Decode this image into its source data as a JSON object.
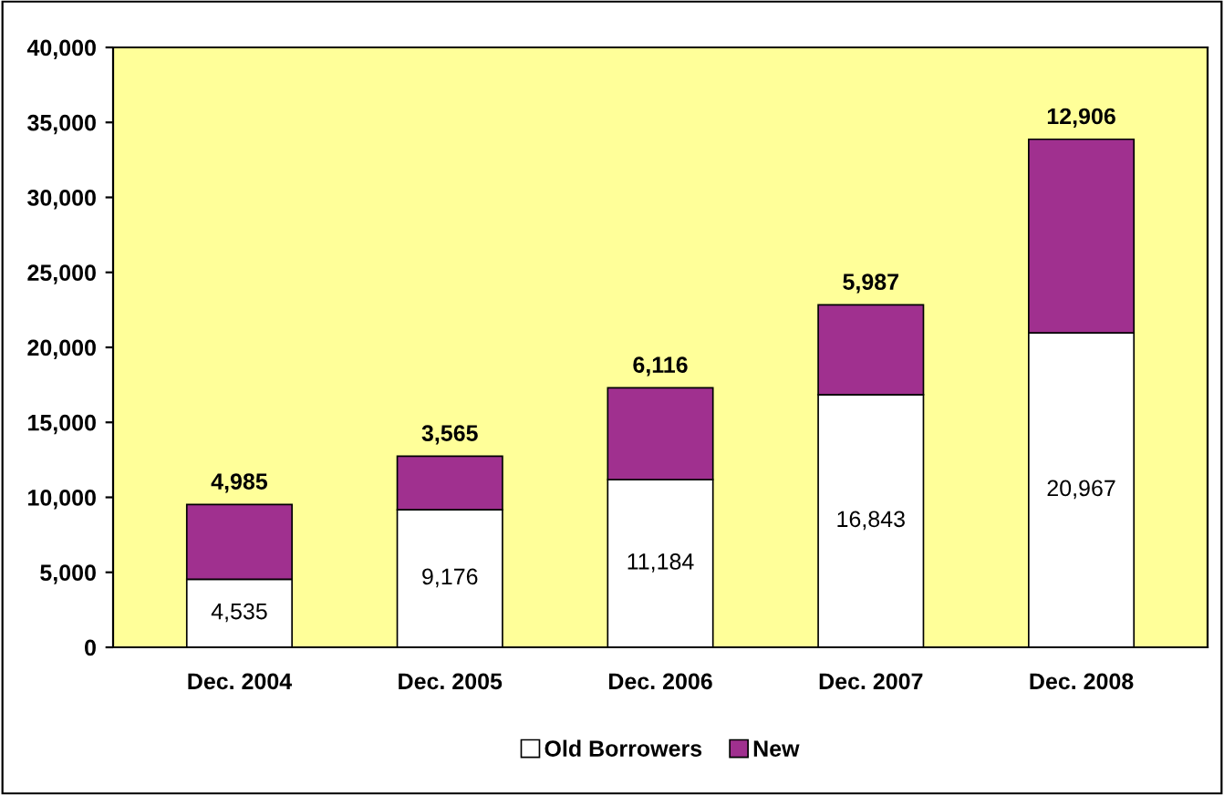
{
  "chart_data": {
    "type": "bar",
    "stacked": true,
    "categories": [
      "Dec. 2004",
      "Dec. 2005",
      "Dec. 2006",
      "Dec. 2007",
      "Dec. 2008"
    ],
    "series": [
      {
        "name": "Old Borrowers",
        "color": "#ffffff",
        "values": [
          4535,
          9176,
          11184,
          16843,
          20967
        ],
        "value_labels": [
          "4,535",
          "9,176",
          "11,184",
          "16,843",
          "20,967"
        ]
      },
      {
        "name": "New",
        "color": "#a0308f",
        "values": [
          4985,
          3565,
          6116,
          5987,
          12906
        ],
        "value_labels": [
          "4,985",
          "3,565",
          "6,116",
          "5,987",
          "12,906"
        ]
      }
    ],
    "ylim": [
      0,
      40000
    ],
    "yticks": [
      {
        "value": 0,
        "label": "0"
      },
      {
        "value": 5000,
        "label": "5,000"
      },
      {
        "value": 10000,
        "label": "10,000"
      },
      {
        "value": 15000,
        "label": "15,000"
      },
      {
        "value": 20000,
        "label": "20,000"
      },
      {
        "value": 25000,
        "label": "25,000"
      },
      {
        "value": 30000,
        "label": "30,000"
      },
      {
        "value": 35000,
        "label": "35,000"
      },
      {
        "value": 40000,
        "label": "40,000"
      }
    ],
    "grid": false,
    "legend": "bottom"
  }
}
